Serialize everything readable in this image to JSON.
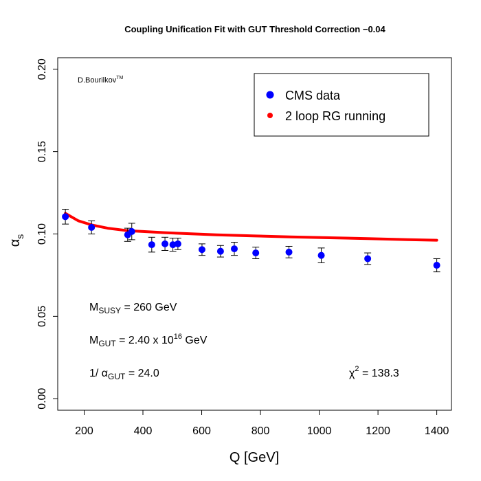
{
  "chart_data": {
    "type": "scatter",
    "title": "Coupling Unification Fit with GUT Threshold Correction −0.04",
    "xlabel": "Q [GeV]",
    "ylabel": {
      "main": "α",
      "sub": "s"
    },
    "xlim": [
      110,
      1450
    ],
    "ylim": [
      -0.007,
      0.207
    ],
    "x_ticks": [
      200,
      400,
      600,
      800,
      1000,
      1200,
      1400
    ],
    "x_tick_labels": [
      "200",
      "400",
      "600",
      "800",
      "1000",
      "1200",
      "1400"
    ],
    "y_ticks": [
      0.0,
      0.05,
      0.1,
      0.15,
      0.2
    ],
    "y_tick_labels": [
      "0.00",
      "0.05",
      "0.10",
      "0.15",
      "0.20"
    ],
    "grid": false,
    "legend_position": "top-right",
    "series": [
      {
        "name": "CMS data",
        "kind": "points_with_errorbars",
        "color": "#0000ff",
        "points": [
          {
            "x": 136,
            "y": 0.1105,
            "err": 0.0045
          },
          {
            "x": 225,
            "y": 0.104,
            "err": 0.004
          },
          {
            "x": 348,
            "y": 0.0995,
            "err": 0.004
          },
          {
            "x": 362,
            "y": 0.1015,
            "err": 0.005
          },
          {
            "x": 430,
            "y": 0.0935,
            "err": 0.0045
          },
          {
            "x": 475,
            "y": 0.094,
            "err": 0.004
          },
          {
            "x": 502,
            "y": 0.0935,
            "err": 0.004
          },
          {
            "x": 519,
            "y": 0.094,
            "err": 0.0035
          },
          {
            "x": 601,
            "y": 0.0905,
            "err": 0.0035
          },
          {
            "x": 664,
            "y": 0.0895,
            "err": 0.0035
          },
          {
            "x": 711,
            "y": 0.091,
            "err": 0.004
          },
          {
            "x": 784,
            "y": 0.0885,
            "err": 0.0035
          },
          {
            "x": 897,
            "y": 0.089,
            "err": 0.0035
          },
          {
            "x": 1007,
            "y": 0.087,
            "err": 0.0045
          },
          {
            "x": 1165,
            "y": 0.085,
            "err": 0.0035
          },
          {
            "x": 1400,
            "y": 0.081,
            "err": 0.004
          }
        ]
      },
      {
        "name": "2 loop RG running",
        "kind": "line",
        "color": "#ff0000",
        "x": [
          136,
          180,
          225,
          280,
          348,
          400,
          475,
          550,
          650,
          784,
          900,
          1007,
          1165,
          1300,
          1400
        ],
        "y": [
          0.1125,
          0.108,
          0.1055,
          0.1035,
          0.102,
          0.1015,
          0.1008,
          0.1002,
          0.0995,
          0.0988,
          0.0982,
          0.0978,
          0.0972,
          0.0966,
          0.0962
        ]
      }
    ],
    "annotations": {
      "author": {
        "text": "D.Bourilkov",
        "sup": "TM"
      },
      "msusy": {
        "label": "M",
        "sub": "SUSY",
        "rest": "  = 260 GeV"
      },
      "mgut": {
        "label": "M",
        "sub": "GUT",
        "rest": "  = 2.40 x 10",
        "exp": "16",
        "unit": "  GeV"
      },
      "alpha_gut": {
        "label": "1/ α",
        "sub": "GUT",
        "rest": "  = 24.0"
      },
      "chi2": {
        "label": "χ",
        "sup": "2",
        "rest": "  = 138.3"
      }
    }
  }
}
